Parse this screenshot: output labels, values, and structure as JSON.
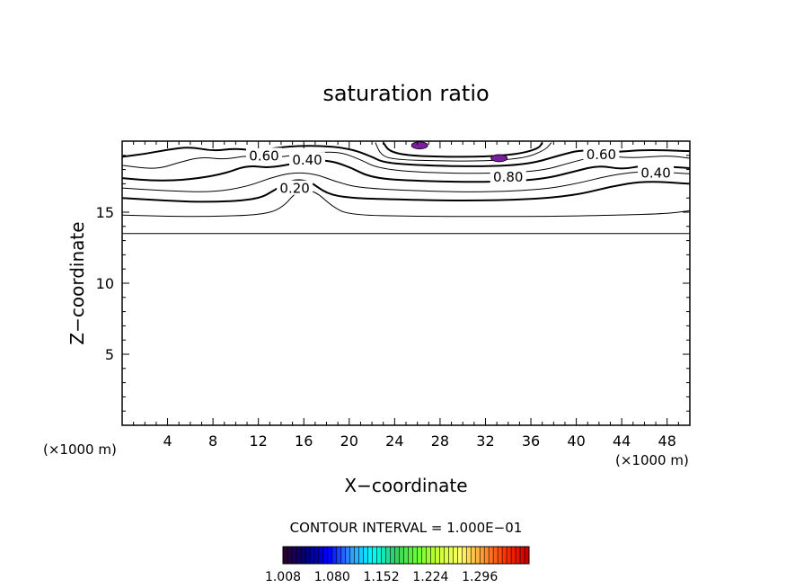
{
  "chart_data": {
    "type": "contour",
    "title": "saturation ratio",
    "xlabel": "X−coordinate",
    "ylabel": "Z−coordinate",
    "x_unit_left": "(×1000 m)",
    "x_unit_right": "(×1000 m)",
    "xlim": [
      0,
      50
    ],
    "ylim": [
      0,
      20
    ],
    "x_ticks": [
      4,
      8,
      12,
      16,
      20,
      24,
      28,
      32,
      36,
      40,
      44,
      48
    ],
    "y_ticks": [
      5,
      10,
      15
    ],
    "contour_interval_text": "CONTOUR INTERVAL = 1.000E−01",
    "contour_labels": [
      {
        "text": "0.60",
        "x": 12.5,
        "z": 18.9
      },
      {
        "text": "0.40",
        "x": 16.3,
        "z": 18.6
      },
      {
        "text": "0.20",
        "x": 15.2,
        "z": 16.6
      },
      {
        "text": "0.80",
        "x": 34.0,
        "z": 17.4
      },
      {
        "text": "0.60",
        "x": 42.2,
        "z": 19.0
      },
      {
        "text": "0.40",
        "x": 47.0,
        "z": 17.7
      }
    ],
    "contours": [
      {
        "value": 0.1,
        "points": [
          [
            0,
            14.8
          ],
          [
            4,
            14.7
          ],
          [
            8,
            14.7
          ],
          [
            12,
            14.8
          ],
          [
            14,
            15.2
          ],
          [
            15.5,
            16.6
          ],
          [
            17,
            16.5
          ],
          [
            18.5,
            15.4
          ],
          [
            20,
            14.8
          ],
          [
            26,
            14.7
          ],
          [
            32,
            14.7
          ],
          [
            38,
            14.7
          ],
          [
            44,
            14.8
          ],
          [
            48,
            14.9
          ],
          [
            50,
            15.1
          ]
        ]
      },
      {
        "value": 0.2,
        "points": [
          [
            0,
            16.0
          ],
          [
            4,
            15.8
          ],
          [
            8,
            15.7
          ],
          [
            12,
            15.9
          ],
          [
            13.5,
            16.6
          ],
          [
            15,
            17.3
          ],
          [
            16.5,
            17.2
          ],
          [
            18,
            16.3
          ],
          [
            20,
            16.0
          ],
          [
            24,
            15.9
          ],
          [
            30,
            15.8
          ],
          [
            36,
            15.9
          ],
          [
            40,
            16.2
          ],
          [
            43,
            16.8
          ],
          [
            46,
            17.2
          ],
          [
            50,
            17.0
          ]
        ]
      },
      {
        "value": 0.3,
        "points": [
          [
            0,
            16.7
          ],
          [
            4,
            16.5
          ],
          [
            8,
            16.4
          ],
          [
            11,
            16.8
          ],
          [
            13,
            17.4
          ],
          [
            15,
            17.8
          ],
          [
            17,
            17.7
          ],
          [
            19,
            17.1
          ],
          [
            21,
            16.7
          ],
          [
            26,
            16.5
          ],
          [
            32,
            16.4
          ],
          [
            37,
            16.6
          ],
          [
            40,
            17.0
          ],
          [
            43,
            17.6
          ],
          [
            46,
            17.9
          ],
          [
            50,
            17.7
          ]
        ]
      },
      {
        "value": 0.4,
        "points": [
          [
            0,
            17.4
          ],
          [
            3,
            17.2
          ],
          [
            6,
            17.3
          ],
          [
            9,
            17.7
          ],
          [
            11,
            18.3
          ],
          [
            13,
            18.1
          ],
          [
            15.5,
            18.5
          ],
          [
            18,
            18.7
          ],
          [
            20,
            18.2
          ],
          [
            22,
            17.4
          ],
          [
            26,
            17.2
          ],
          [
            32,
            17.1
          ],
          [
            37,
            17.3
          ],
          [
            40,
            17.9
          ],
          [
            42,
            18.3
          ],
          [
            44,
            18.0
          ],
          [
            46,
            18.3
          ],
          [
            50,
            18.1
          ]
        ]
      },
      {
        "value": 0.5,
        "points": [
          [
            0,
            18.3
          ],
          [
            3,
            18.0
          ],
          [
            5,
            18.5
          ],
          [
            7,
            18.9
          ],
          [
            9,
            18.7
          ],
          [
            11,
            19.0
          ],
          [
            13,
            18.8
          ],
          [
            16,
            19.1
          ],
          [
            19,
            19.3
          ],
          [
            21,
            18.7
          ],
          [
            22.5,
            18.1
          ],
          [
            26,
            17.8
          ],
          [
            32,
            17.7
          ],
          [
            37,
            17.9
          ],
          [
            39.5,
            18.5
          ],
          [
            42,
            19.0
          ],
          [
            45,
            18.8
          ],
          [
            48,
            19.0
          ],
          [
            50,
            18.8
          ]
        ]
      },
      {
        "value": 0.6,
        "points": [
          [
            0,
            18.9
          ],
          [
            2,
            19.1
          ],
          [
            4,
            19.4
          ],
          [
            6,
            19.6
          ],
          [
            8,
            19.3
          ],
          [
            10,
            19.5
          ],
          [
            12,
            19.3
          ],
          [
            14,
            19.6
          ],
          [
            17,
            19.7
          ],
          [
            20,
            19.5
          ],
          [
            22,
            18.9
          ],
          [
            23,
            18.5
          ],
          [
            26,
            18.3
          ],
          [
            32,
            18.2
          ],
          [
            36,
            18.4
          ],
          [
            38.5,
            19.0
          ],
          [
            40.5,
            19.4
          ],
          [
            43,
            19.2
          ],
          [
            46,
            19.4
          ],
          [
            50,
            19.3
          ]
        ]
      },
      {
        "value": 0.7,
        "points": [
          [
            22.3,
            19.9
          ],
          [
            22.8,
            19.0
          ],
          [
            24,
            18.7
          ],
          [
            28,
            18.6
          ],
          [
            32,
            18.6
          ],
          [
            35.5,
            18.8
          ],
          [
            37.3,
            19.4
          ],
          [
            37.8,
            19.9
          ]
        ]
      },
      {
        "value": 0.8,
        "points": [
          [
            23,
            19.9
          ],
          [
            23.5,
            19.3
          ],
          [
            25,
            19.0
          ],
          [
            28,
            18.9
          ],
          [
            32,
            18.9
          ],
          [
            35,
            19.1
          ],
          [
            36.7,
            19.5
          ],
          [
            37,
            19.9
          ]
        ]
      }
    ],
    "colorbar": {
      "min": 1.008,
      "max": 1.368,
      "tick_labels": [
        "1.008",
        "1.080",
        "1.152",
        "1.224",
        "1.296"
      ],
      "colors": [
        "#2a0033",
        "#000080",
        "#0000ff",
        "#3399ff",
        "#00ffff",
        "#33cc66",
        "#66ff33",
        "#ccff33",
        "#ffff66",
        "#ff9933",
        "#ff3300",
        "#cc0000"
      ]
    },
    "patches": [
      {
        "x": 26.2,
        "z": 19.7,
        "color": "#7a1fa0"
      },
      {
        "x": 33.2,
        "z": 18.8,
        "color": "#7a1fa0"
      }
    ]
  }
}
